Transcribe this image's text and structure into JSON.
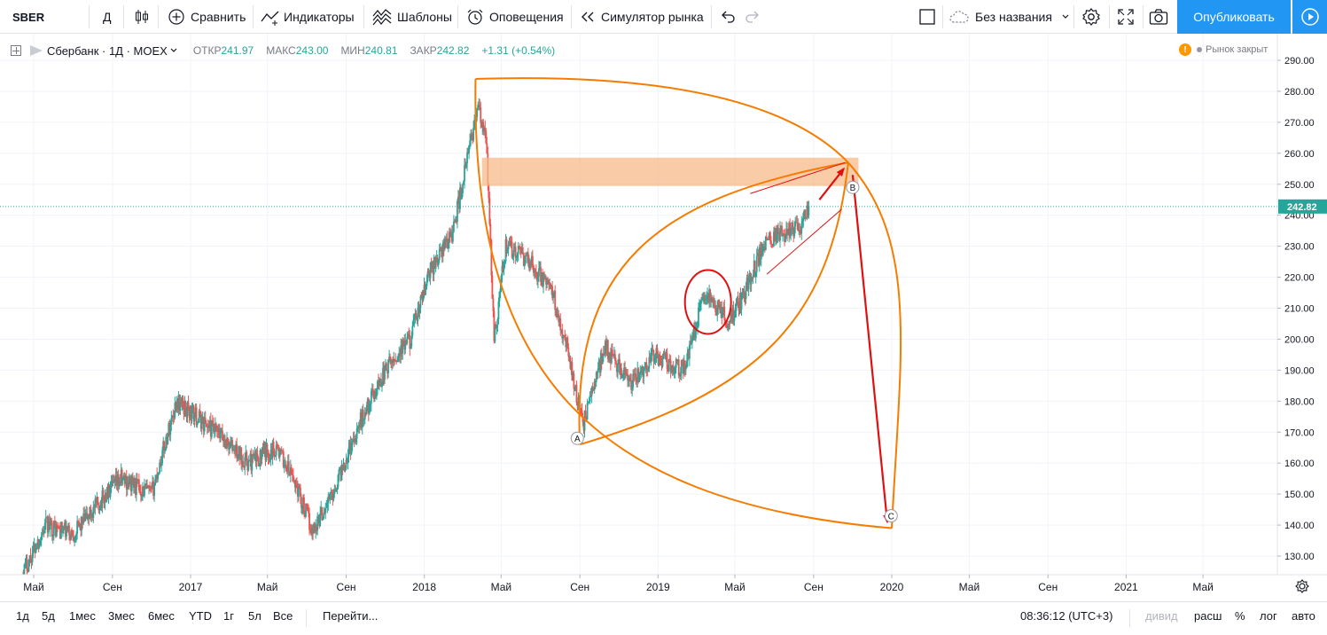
{
  "toolbar": {
    "symbol": "SBER",
    "interval": "Д",
    "compare_label": "Сравнить",
    "indicators_label": "Индикаторы",
    "templates_label": "Шаблоны",
    "alerts_label": "Оповещения",
    "replay_label": "Симулятор рынка",
    "layout_name": "Без названия",
    "publish_label": "Опубликовать"
  },
  "legend": {
    "title": "Сбербанк · 1Д · MOEX",
    "open_label": "ОТКР",
    "open": "241.97",
    "high_label": "МАКС",
    "high": "243.00",
    "low_label": "МИН",
    "low": "240.81",
    "close_label": "ЗАКР",
    "close": "242.82",
    "change": "+1.31 (+0.54%)"
  },
  "market_status": {
    "icon": "!",
    "label": "Рынок закрыт"
  },
  "bottom": {
    "ranges": [
      "1д",
      "5д",
      "1мес",
      "3мес",
      "6мес",
      "YTD",
      "1г",
      "5л",
      "Все"
    ],
    "goto_label": "Перейти...",
    "clock": "08:36:12 (UTC+3)",
    "adj_label": "дивид",
    "ext_label": "расш",
    "pct_label": "%",
    "log_label": "лог",
    "auto_label": "авто"
  },
  "colors": {
    "up": "#26a69a",
    "down": "#ef5350",
    "drawing_orange": "#f57c00",
    "zone_fill": "#f7b98a",
    "arrow_red": "#e01010",
    "price_line": "#26a69a",
    "accent": "#2196f3"
  },
  "chart_data": {
    "type": "candlestick",
    "title": "Сбербанк · 1Д · MOEX",
    "ylim": [
      123,
      296
    ],
    "y_ticks": [
      130,
      140,
      150,
      160,
      170,
      180,
      190,
      200,
      210,
      220,
      230,
      240,
      250,
      260,
      270,
      280,
      290
    ],
    "y_tick_labels": [
      "130.00",
      "140.00",
      "150.00",
      "160.00",
      "170.00",
      "180.00",
      "190.00",
      "200.00",
      "210.00",
      "220.00",
      "230.00",
      "240.00",
      "250.00",
      "260.00",
      "270.00",
      "280.00",
      "290.00"
    ],
    "x_tick_labels": [
      "Май",
      "Сен",
      "2017",
      "Май",
      "Сен",
      "2018",
      "Май",
      "Сен",
      "2019",
      "Май",
      "Сен",
      "2020",
      "Май",
      "Сен",
      "2021",
      "Май"
    ],
    "x_ticks": [
      "2016-05",
      "2016-09",
      "2017-01",
      "2017-05",
      "2017-09",
      "2018-01",
      "2018-05",
      "2018-09",
      "2019-01",
      "2019-05",
      "2019-09",
      "2020-01",
      "2020-05",
      "2020-09",
      "2021-01",
      "2021-05"
    ],
    "last_price": 242.82,
    "last_price_label": "242.82",
    "path": [
      [
        "2016-04-15",
        125
      ],
      [
        "2016-05-20",
        140
      ],
      [
        "2016-07-01",
        137
      ],
      [
        "2016-08-15",
        148
      ],
      [
        "2016-09-15",
        155
      ],
      [
        "2016-11-01",
        150
      ],
      [
        "2016-12-10",
        180
      ],
      [
        "2017-01-10",
        175
      ],
      [
        "2017-02-20",
        168
      ],
      [
        "2017-04-01",
        160
      ],
      [
        "2017-05-15",
        165
      ],
      [
        "2017-06-15",
        153
      ],
      [
        "2017-07-10",
        138
      ],
      [
        "2017-08-10",
        150
      ],
      [
        "2017-09-20",
        172
      ],
      [
        "2017-11-01",
        190
      ],
      [
        "2017-12-10",
        200
      ],
      [
        "2018-01-10",
        222
      ],
      [
        "2018-02-15",
        235
      ],
      [
        "2018-03-25",
        275
      ],
      [
        "2018-04-08",
        263
      ],
      [
        "2018-04-20",
        200
      ],
      [
        "2018-05-08",
        230
      ],
      [
        "2018-06-15",
        225
      ],
      [
        "2018-07-20",
        215
      ],
      [
        "2018-08-15",
        195
      ],
      [
        "2018-09-05",
        172
      ],
      [
        "2018-10-10",
        198
      ],
      [
        "2018-11-20",
        185
      ],
      [
        "2018-12-25",
        195
      ],
      [
        "2019-02-10",
        190
      ],
      [
        "2019-03-15",
        215
      ],
      [
        "2019-04-20",
        206
      ],
      [
        "2019-05-10",
        212
      ],
      [
        "2019-06-15",
        230
      ],
      [
        "2019-07-01",
        233
      ],
      [
        "2019-08-10",
        236
      ],
      [
        "2019-08-25",
        243
      ]
    ],
    "annotations": {
      "labels": [
        "A",
        "B",
        "C"
      ],
      "resistance_zone": {
        "from_date": "2018-04-01",
        "to_date": "2019-11-10",
        "low": 250,
        "high": 258
      },
      "point_A": [
        "2018-08-28",
        168
      ],
      "point_B": [
        "2019-11-01",
        249
      ],
      "point_C": [
        "2019-12-31",
        143
      ]
    }
  }
}
